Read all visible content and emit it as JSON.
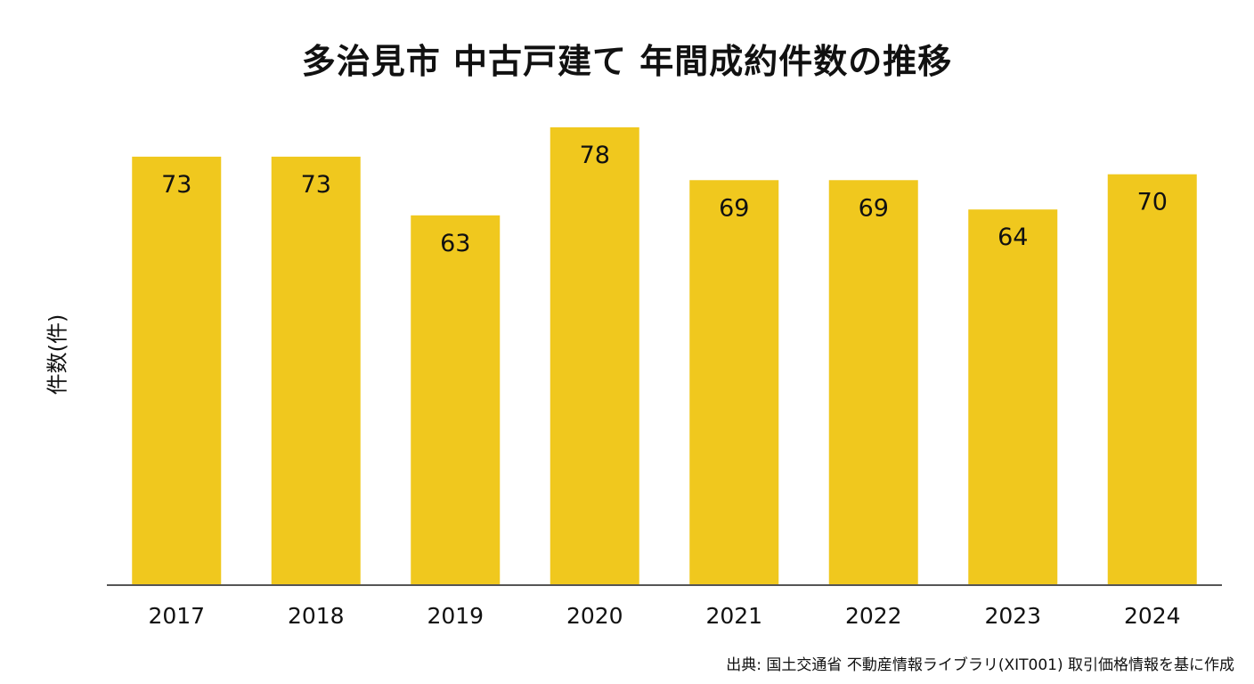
{
  "chart_data": {
    "type": "bar",
    "title": "多治見市 中古戸建て 年間成約件数の推移",
    "ylabel": "件数(件)",
    "xlabel": "",
    "categories": [
      "2017",
      "2018",
      "2019",
      "2020",
      "2021",
      "2022",
      "2023",
      "2024"
    ],
    "values": [
      73,
      73,
      63,
      78,
      69,
      69,
      64,
      70
    ],
    "ylim": [
      0,
      83
    ],
    "bar_color": "#F0C81E",
    "axis_color": "#555555",
    "grid": false,
    "legend": "none",
    "data_labels": true,
    "source": "出典: 国土交通省 不動産情報ライブラリ(XIT001) 取引価格情報を基に作成"
  }
}
